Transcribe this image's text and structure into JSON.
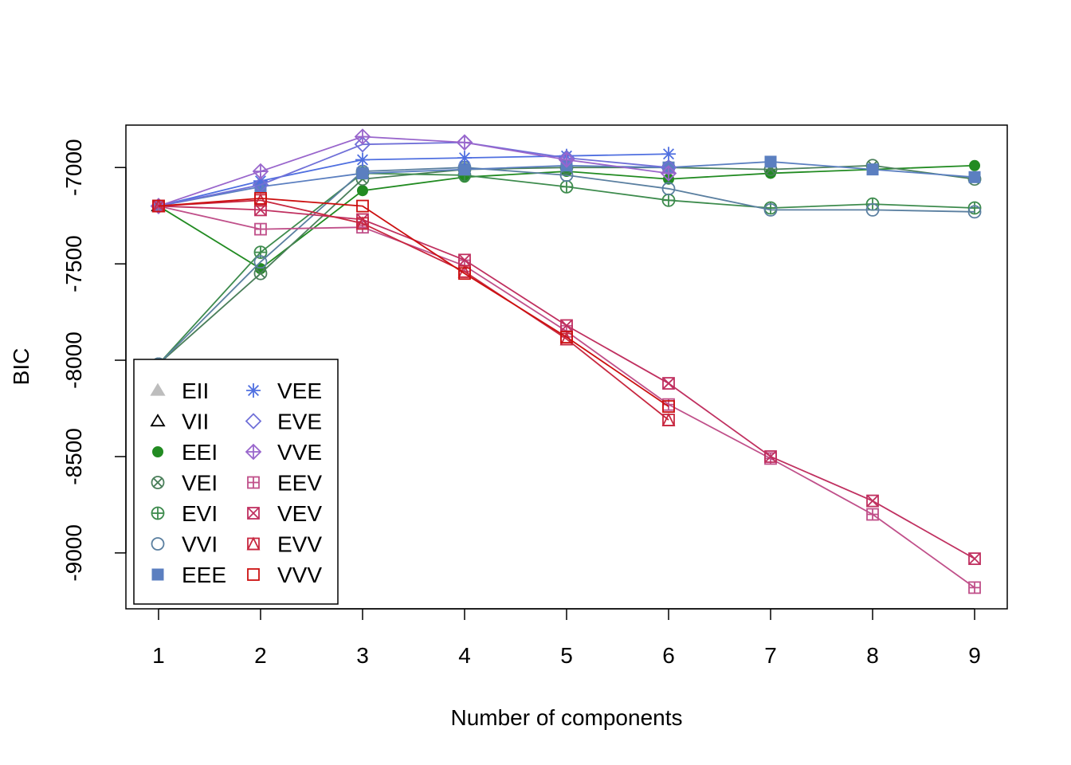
{
  "chart_data": {
    "type": "line",
    "title": "",
    "xlabel": "Number of components",
    "ylabel": "BIC",
    "x": [
      1,
      2,
      3,
      4,
      5,
      6,
      7,
      8,
      9
    ],
    "xticks": [
      "1",
      "2",
      "3",
      "4",
      "5",
      "6",
      "7",
      "8",
      "9"
    ],
    "yticks": [
      -7000,
      -7500,
      -8000,
      -8500,
      -9000
    ],
    "ylim": [
      -9290,
      -6780
    ],
    "xlim": [
      0.68,
      9.32
    ],
    "grid": false,
    "legend_position": "bottom-left",
    "series": [
      {
        "name": "EII",
        "color": "#bdbdbd",
        "marker": "triangle-filled",
        "values": [
          -7200,
          null,
          null,
          null,
          null,
          null,
          null,
          null,
          null
        ]
      },
      {
        "name": "VII",
        "color": "#000000",
        "marker": "triangle-open",
        "values": [
          -7200,
          null,
          null,
          null,
          null,
          null,
          null,
          null,
          null
        ]
      },
      {
        "name": "EEI",
        "color": "#228b22",
        "marker": "circle-filled",
        "values": [
          -7200,
          -7525,
          -7120,
          -7050,
          -7020,
          -7060,
          -7030,
          -7010,
          -6990
        ]
      },
      {
        "name": "VEI",
        "color": "#4a7f5a",
        "marker": "circle-x",
        "values": [
          -8020,
          -7550,
          -7060,
          -7010,
          -7000,
          -7000,
          -7010,
          -6990,
          -7060
        ]
      },
      {
        "name": "EVI",
        "color": "#3d8b4d",
        "marker": "circle-plus",
        "values": [
          -8020,
          -7440,
          -7030,
          -7040,
          -7100,
          -7170,
          -7210,
          -7190,
          -7210
        ]
      },
      {
        "name": "VVI",
        "color": "#5a7fa0",
        "marker": "circle-open",
        "values": [
          -8020,
          -7490,
          -7020,
          -7000,
          -7040,
          -7110,
          -7220,
          -7220,
          -7230
        ]
      },
      {
        "name": "EEE",
        "color": "#5b7fc0",
        "marker": "square-filled",
        "values": [
          -7200,
          -7100,
          -7030,
          -7010,
          -6990,
          -7000,
          -6970,
          -7010,
          -7050
        ]
      },
      {
        "name": "VEE",
        "color": "#4f6fe0",
        "marker": "asterisk",
        "values": [
          -7200,
          -7070,
          -6960,
          -6950,
          -6940,
          -6930,
          null,
          null,
          null
        ]
      },
      {
        "name": "EVE",
        "color": "#7070d8",
        "marker": "diamond-open",
        "values": [
          -7200,
          -7090,
          -6880,
          -6870,
          -6950,
          -7000,
          null,
          null,
          null
        ]
      },
      {
        "name": "VVE",
        "color": "#9966cc",
        "marker": "diamond-plus",
        "values": [
          -7200,
          -7020,
          -6840,
          -6870,
          -6960,
          -7030,
          null,
          null,
          null
        ]
      },
      {
        "name": "EEV",
        "color": "#c0508a",
        "marker": "square-plus",
        "values": [
          -7200,
          -7320,
          -7310,
          -7510,
          -7850,
          -8230,
          -8510,
          -8800,
          -9180
        ]
      },
      {
        "name": "VEV",
        "color": "#c03060",
        "marker": "square-x",
        "values": [
          -7200,
          -7220,
          -7270,
          -7480,
          -7820,
          -8120,
          -8500,
          -8730,
          -9030
        ]
      },
      {
        "name": "EVV",
        "color": "#c82840",
        "marker": "square-triangle",
        "values": [
          -7200,
          -7170,
          -7290,
          -7540,
          -7890,
          -8310,
          null,
          null,
          null
        ]
      },
      {
        "name": "VVV",
        "color": "#cc1010",
        "marker": "square-open",
        "values": [
          -7200,
          -7160,
          -7200,
          -7550,
          -7880,
          -8240,
          null,
          null,
          null
        ]
      }
    ]
  }
}
